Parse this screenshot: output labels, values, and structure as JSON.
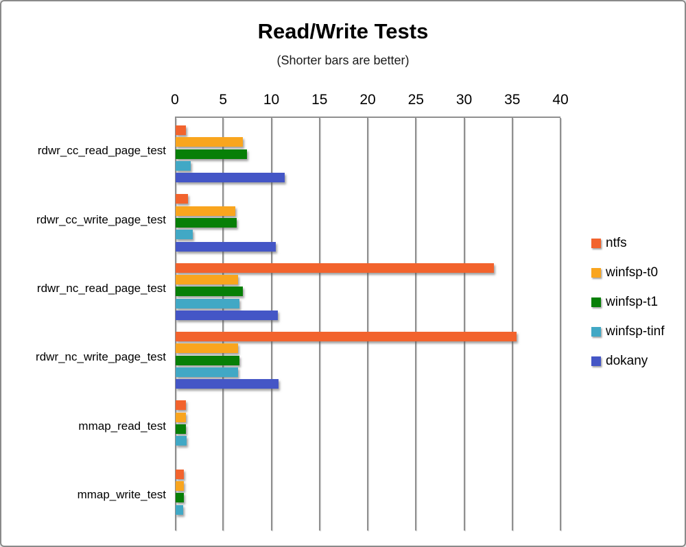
{
  "window": {
    "border_color": "#8a8a8a",
    "background": "#ffffff"
  },
  "chart_data": {
    "type": "bar",
    "orientation": "horizontal",
    "title": "Read/Write Tests",
    "subtitle": "(Shorter bars are better)",
    "xlabel": "",
    "ylabel": "",
    "xlim": [
      0,
      40
    ],
    "xticks": [
      0,
      5,
      10,
      15,
      20,
      25,
      30,
      35,
      40
    ],
    "grid": true,
    "axis_position": "top",
    "legend_position": "right",
    "gridline_color": "#8f8f8f",
    "categories": [
      "rdwr_cc_read_page_test",
      "rdwr_cc_write_page_test",
      "rdwr_nc_read_page_test",
      "rdwr_nc_write_page_test",
      "mmap_read_test",
      "mmap_write_test"
    ],
    "series": [
      {
        "name": "ntfs",
        "color": "#F2632D",
        "values": [
          1.1,
          1.3,
          33.0,
          35.4,
          1.1,
          0.85
        ]
      },
      {
        "name": "winfsp-t0",
        "color": "#F9A51E",
        "values": [
          7.0,
          6.2,
          6.5,
          6.5,
          1.1,
          0.85
        ]
      },
      {
        "name": "winfsp-t1",
        "color": "#077F07",
        "values": [
          7.4,
          6.3,
          7.0,
          6.6,
          1.1,
          0.85
        ]
      },
      {
        "name": "winfsp-tinf",
        "color": "#41A8C5",
        "values": [
          1.6,
          1.8,
          6.6,
          6.45,
          1.15,
          0.8
        ]
      },
      {
        "name": "dokany",
        "color": "#4456C6",
        "values": [
          11.3,
          10.4,
          10.6,
          10.7,
          0,
          0
        ]
      }
    ]
  }
}
